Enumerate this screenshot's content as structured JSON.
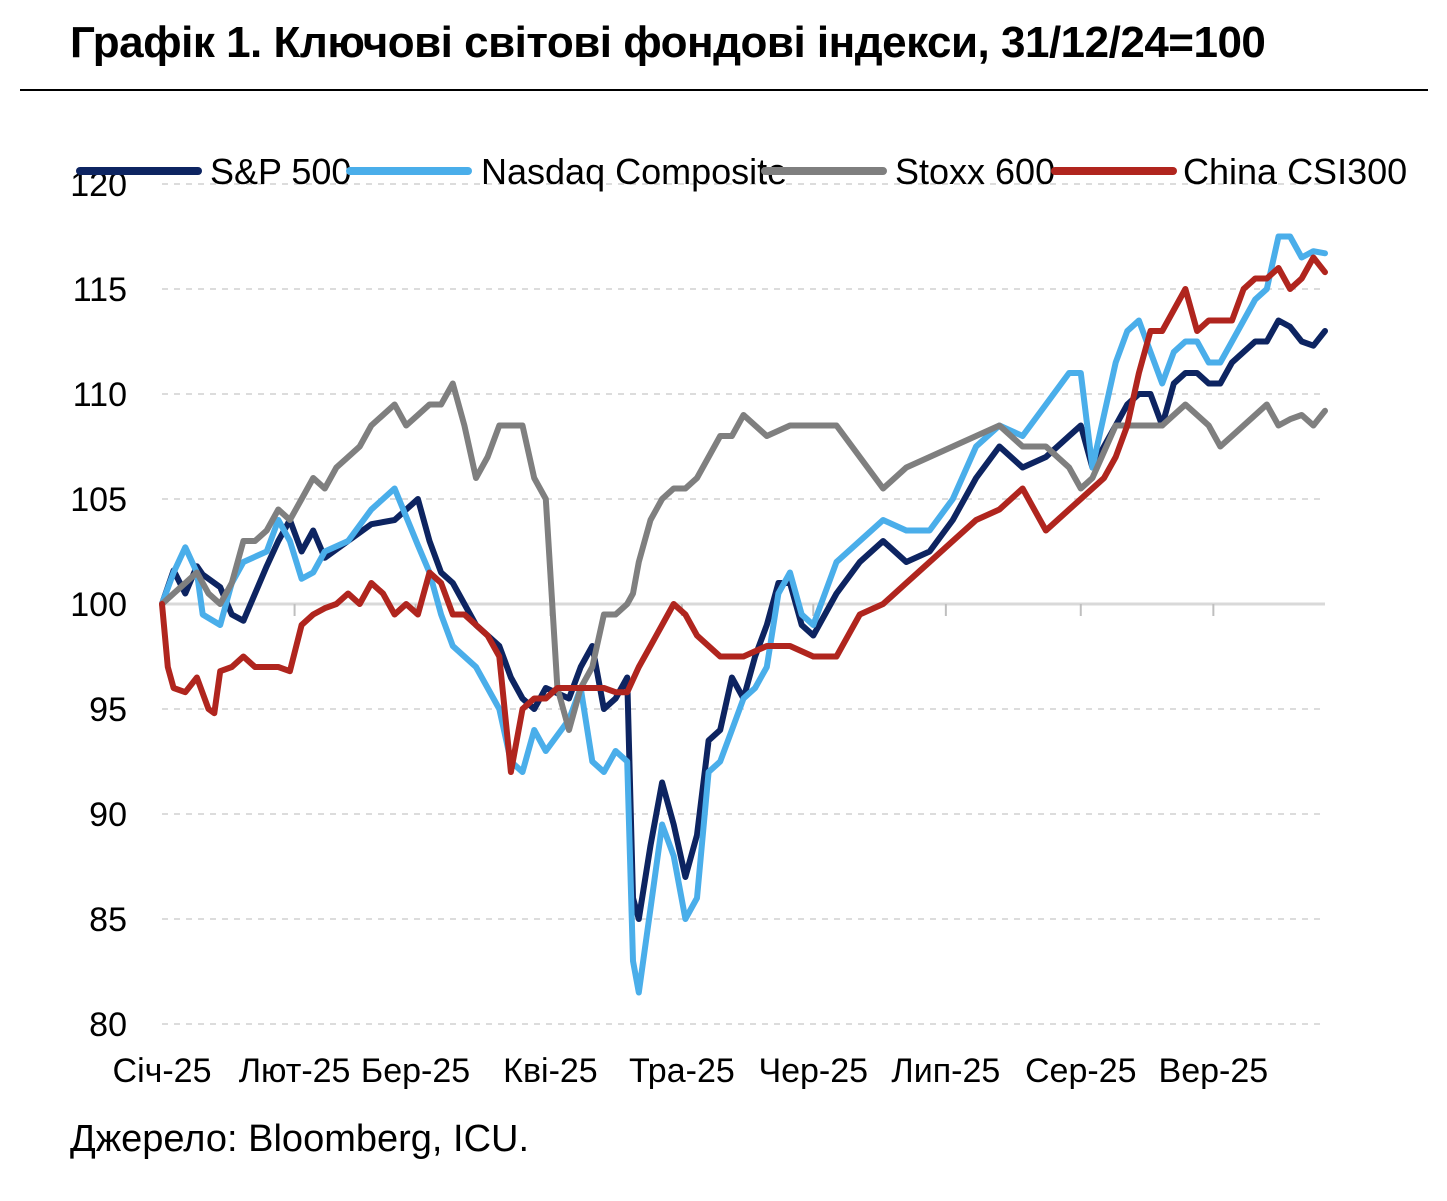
{
  "header": {
    "title": "Графік 1. Ключові світові фондові індекси, 31/12/24=100"
  },
  "footer": {
    "source": "Джерело: Bloomberg, ICU."
  },
  "chart_data": {
    "type": "line",
    "title": "Графік 1. Ключові світові фондові індекси, 31/12/24=100",
    "xlabel": "",
    "ylabel": "",
    "ylim": [
      80,
      120
    ],
    "yticks": [
      80,
      85,
      90,
      95,
      100,
      105,
      110,
      115,
      120
    ],
    "x_range": [
      0,
      1
    ],
    "xtick_labels": [
      "Січ-25",
      "Лют-25",
      "Бер-25",
      "Кві-25",
      "Тра-25",
      "Чер-25",
      "Лип-25",
      "Сер-25",
      "Вер-25"
    ],
    "xtick_positions": [
      0,
      0.114,
      0.218,
      0.334,
      0.447,
      0.56,
      0.674,
      0.79,
      0.904
    ],
    "grid": "horizontal dashed",
    "legend_position": "top",
    "series": [
      {
        "name": "S&P 500",
        "color": "#0d2461",
        "x": [
          0,
          0.01,
          0.02,
          0.03,
          0.035,
          0.05,
          0.06,
          0.07,
          0.09,
          0.1,
          0.11,
          0.12,
          0.13,
          0.14,
          0.16,
          0.18,
          0.2,
          0.22,
          0.23,
          0.24,
          0.25,
          0.27,
          0.29,
          0.3,
          0.31,
          0.32,
          0.33,
          0.35,
          0.36,
          0.37,
          0.38,
          0.39,
          0.4,
          0.405,
          0.41,
          0.42,
          0.43,
          0.44,
          0.45,
          0.46,
          0.47,
          0.48,
          0.49,
          0.5,
          0.51,
          0.52,
          0.53,
          0.54,
          0.55,
          0.56,
          0.58,
          0.6,
          0.62,
          0.64,
          0.66,
          0.68,
          0.7,
          0.72,
          0.74,
          0.76,
          0.78,
          0.79,
          0.8,
          0.81,
          0.82,
          0.83,
          0.84,
          0.85,
          0.86,
          0.87,
          0.88,
          0.89,
          0.9,
          0.91,
          0.92,
          0.93,
          0.94,
          0.95,
          0.96,
          0.97,
          0.98,
          0.99,
          1
        ],
        "y": [
          100,
          101.6,
          100.5,
          101.8,
          101.4,
          100.8,
          99.5,
          99.2,
          101.8,
          103,
          104,
          102.5,
          103.5,
          102.2,
          103,
          103.8,
          104,
          105,
          103,
          101.5,
          101,
          99,
          98,
          96.5,
          95.5,
          95,
          96,
          95.5,
          97,
          98,
          95,
          95.5,
          96.5,
          86,
          85,
          88.5,
          91.5,
          89.5,
          87,
          89,
          93.5,
          94,
          96.5,
          95.5,
          97.5,
          99,
          101,
          101,
          99,
          98.5,
          100.5,
          102,
          103,
          102,
          102.5,
          104,
          106,
          107.5,
          106.5,
          107,
          108,
          108.5,
          106.5,
          107.5,
          108.5,
          109.5,
          110,
          110,
          108.5,
          110.5,
          111,
          111,
          110.5,
          110.5,
          111.5,
          112,
          112.5,
          112.5,
          113.5,
          113.2,
          112.5,
          112.3,
          113
        ]
      },
      {
        "name": "Nasdaq Composite",
        "color": "#4aaeea",
        "x": [
          0,
          0.01,
          0.02,
          0.03,
          0.035,
          0.05,
          0.06,
          0.07,
          0.09,
          0.1,
          0.11,
          0.12,
          0.13,
          0.14,
          0.16,
          0.18,
          0.2,
          0.22,
          0.23,
          0.24,
          0.25,
          0.27,
          0.29,
          0.3,
          0.31,
          0.32,
          0.33,
          0.35,
          0.36,
          0.37,
          0.38,
          0.39,
          0.4,
          0.405,
          0.41,
          0.42,
          0.43,
          0.44,
          0.45,
          0.46,
          0.47,
          0.48,
          0.49,
          0.5,
          0.51,
          0.52,
          0.53,
          0.54,
          0.55,
          0.56,
          0.58,
          0.6,
          0.62,
          0.64,
          0.66,
          0.68,
          0.7,
          0.72,
          0.74,
          0.76,
          0.78,
          0.79,
          0.8,
          0.81,
          0.82,
          0.83,
          0.84,
          0.85,
          0.86,
          0.87,
          0.88,
          0.89,
          0.9,
          0.91,
          0.92,
          0.93,
          0.94,
          0.95,
          0.96,
          0.97,
          0.98,
          0.99,
          1
        ],
        "y": [
          100,
          101.5,
          102.7,
          101.5,
          99.5,
          99,
          101,
          102,
          102.5,
          104,
          103,
          101.2,
          101.5,
          102.5,
          103,
          104.5,
          105.5,
          102.8,
          101.5,
          99.5,
          98,
          97,
          95,
          92.5,
          92,
          94,
          93,
          94.5,
          96,
          92.5,
          92,
          93,
          92.5,
          83,
          81.5,
          85.5,
          89.5,
          88,
          85,
          86,
          92,
          92.5,
          94,
          95.5,
          96,
          97,
          100.5,
          101.5,
          99.5,
          99,
          102,
          103,
          104,
          103.5,
          103.5,
          105,
          107.5,
          108.5,
          108,
          109.5,
          111,
          111,
          106.5,
          109,
          111.5,
          113,
          113.5,
          112,
          110.5,
          112,
          112.5,
          112.5,
          111.5,
          111.5,
          112.5,
          113.5,
          114.5,
          115,
          117.5,
          117.5,
          116.5,
          116.8,
          116.7
        ]
      },
      {
        "name": "Stoxx 600",
        "color": "#7f7f7f",
        "x": [
          0,
          0.01,
          0.02,
          0.03,
          0.04,
          0.05,
          0.06,
          0.07,
          0.08,
          0.09,
          0.1,
          0.11,
          0.12,
          0.13,
          0.14,
          0.15,
          0.16,
          0.17,
          0.18,
          0.19,
          0.2,
          0.21,
          0.22,
          0.23,
          0.24,
          0.25,
          0.26,
          0.27,
          0.28,
          0.29,
          0.3,
          0.31,
          0.32,
          0.33,
          0.34,
          0.35,
          0.36,
          0.37,
          0.38,
          0.39,
          0.4,
          0.405,
          0.41,
          0.42,
          0.43,
          0.44,
          0.45,
          0.46,
          0.47,
          0.48,
          0.49,
          0.5,
          0.52,
          0.54,
          0.56,
          0.58,
          0.6,
          0.62,
          0.64,
          0.66,
          0.68,
          0.7,
          0.72,
          0.74,
          0.76,
          0.78,
          0.79,
          0.8,
          0.82,
          0.84,
          0.86,
          0.88,
          0.89,
          0.9,
          0.91,
          0.92,
          0.93,
          0.94,
          0.95,
          0.96,
          0.97,
          0.98,
          0.99,
          1
        ],
        "y": [
          100,
          100.5,
          101,
          101.5,
          100.5,
          100,
          101,
          103,
          103,
          103.5,
          104.5,
          104,
          105,
          106,
          105.5,
          106.5,
          107,
          107.5,
          108.5,
          109,
          109.5,
          108.5,
          109,
          109.5,
          109.5,
          110.5,
          108.5,
          106,
          107,
          108.5,
          108.5,
          108.5,
          106,
          105,
          96,
          94,
          96,
          97,
          99.5,
          99.5,
          100,
          100.5,
          102,
          104,
          105,
          105.5,
          105.5,
          106,
          107,
          108,
          108,
          109,
          108,
          108.5,
          108.5,
          108.5,
          107,
          105.5,
          106.5,
          107,
          107.5,
          108,
          108.5,
          107.5,
          107.5,
          106.5,
          105.5,
          106,
          108.5,
          108.5,
          108.5,
          109.5,
          109,
          108.5,
          107.5,
          108,
          108.5,
          109,
          109.5,
          108.5,
          108.8,
          109,
          108.5,
          109.2
        ]
      },
      {
        "name": "China CSI300",
        "color": "#b0251e",
        "x": [
          0,
          0.005,
          0.01,
          0.02,
          0.03,
          0.04,
          0.045,
          0.05,
          0.06,
          0.07,
          0.08,
          0.09,
          0.1,
          0.11,
          0.12,
          0.13,
          0.14,
          0.15,
          0.16,
          0.17,
          0.18,
          0.19,
          0.2,
          0.21,
          0.22,
          0.23,
          0.24,
          0.25,
          0.26,
          0.27,
          0.28,
          0.29,
          0.3,
          0.31,
          0.32,
          0.33,
          0.34,
          0.35,
          0.355,
          0.36,
          0.37,
          0.38,
          0.39,
          0.4,
          0.41,
          0.42,
          0.43,
          0.44,
          0.45,
          0.46,
          0.47,
          0.48,
          0.49,
          0.5,
          0.52,
          0.54,
          0.56,
          0.58,
          0.6,
          0.62,
          0.64,
          0.66,
          0.68,
          0.7,
          0.72,
          0.74,
          0.76,
          0.78,
          0.79,
          0.8,
          0.81,
          0.82,
          0.83,
          0.84,
          0.85,
          0.86,
          0.87,
          0.88,
          0.89,
          0.9,
          0.91,
          0.92,
          0.93,
          0.94,
          0.95,
          0.96,
          0.97,
          0.98,
          0.99,
          1
        ],
        "y": [
          100,
          97,
          96,
          95.8,
          96.5,
          95,
          94.8,
          96.8,
          97,
          97.5,
          97,
          97,
          97,
          96.8,
          99,
          99.5,
          99.8,
          100,
          100.5,
          100,
          101,
          100.5,
          99.5,
          100,
          99.5,
          101.5,
          101,
          99.5,
          99.5,
          99,
          98.5,
          97.5,
          92,
          95,
          95.5,
          95.5,
          96,
          96,
          96,
          96,
          96,
          96,
          95.8,
          95.8,
          97,
          98,
          99,
          100,
          99.5,
          98.5,
          98,
          97.5,
          97.5,
          97.5,
          98,
          98,
          97.5,
          97.5,
          99.5,
          100,
          101,
          102,
          103,
          104,
          104.5,
          105.5,
          103.5,
          104.5,
          105,
          105.5,
          106,
          107,
          108.5,
          111,
          113,
          113,
          114,
          115,
          113,
          113.5,
          113.5,
          113.5,
          115,
          115.5,
          115.5,
          116,
          115,
          115.5,
          116.5,
          115.8
        ]
      }
    ]
  }
}
